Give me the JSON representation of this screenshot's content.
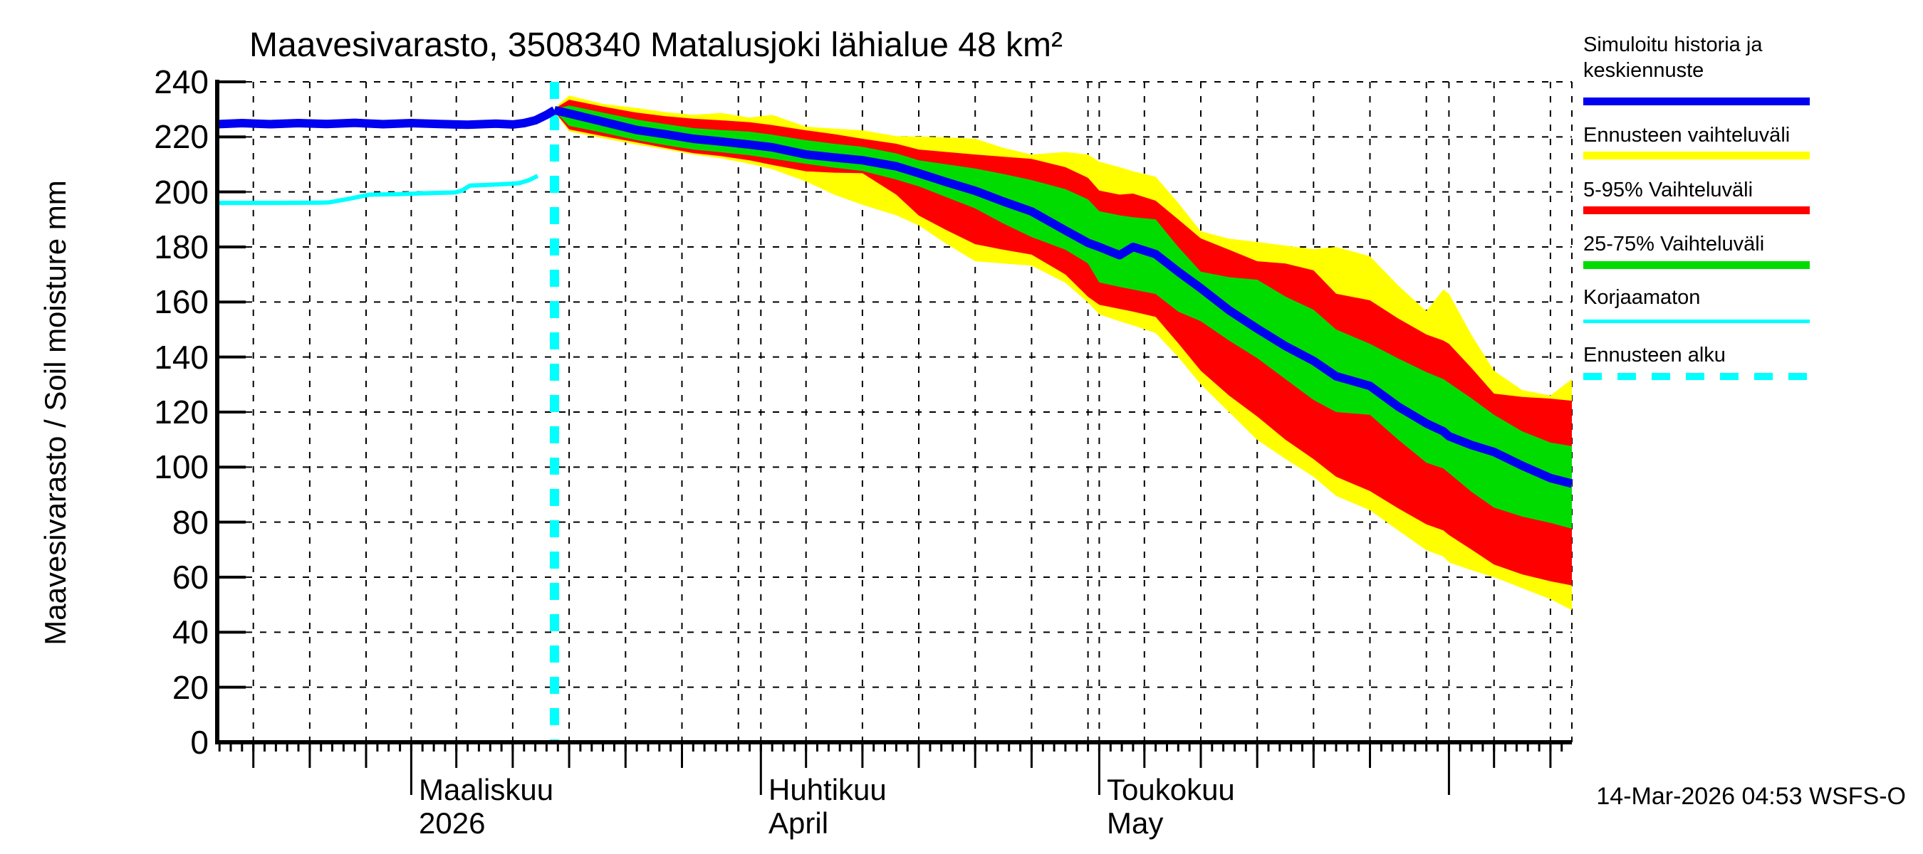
{
  "chart_data": {
    "type": "area",
    "title": "Maavesivarasto, 3508340 Matalusjoki lähialue 48 km²",
    "ylabel": "Maavesivarasto / Soil moisture  mm",
    "timestamp": "14-Mar-2026 04:53 WSFS-O",
    "ylim": [
      0,
      240
    ],
    "y_ticks": [
      0,
      20,
      40,
      60,
      80,
      100,
      120,
      140,
      160,
      180,
      200,
      220,
      240
    ],
    "x_axis": {
      "domain_days_from_mar1": [
        -17.2,
        102.9
      ],
      "months": [
        {
          "day": 0,
          "label": "Maaliskuu",
          "sublabel": "2026"
        },
        {
          "day": 31,
          "label": "Huhtikuu",
          "sublabel": "April"
        },
        {
          "day": 61,
          "label": "Toukokuu",
          "sublabel": "May"
        },
        {
          "day": 92,
          "label": "",
          "sublabel": ""
        }
      ],
      "month_tick_days": [
        0,
        31,
        61,
        92
      ],
      "medium_tick_days": [
        -14,
        -9,
        -4,
        4,
        9,
        14,
        19,
        24,
        35,
        40,
        45,
        50,
        55,
        65,
        70,
        75,
        80,
        85,
        96,
        101
      ],
      "gridline_days": [
        -14,
        -9,
        -4,
        0,
        4,
        9,
        14,
        19,
        24,
        29,
        31,
        35,
        40,
        45,
        50,
        55,
        60,
        61,
        65,
        70,
        75,
        80,
        85,
        90,
        92,
        96,
        101,
        102.9
      ]
    },
    "forecast_start_day": 12.7,
    "colors": {
      "median": "#0000F0",
      "range": "#FFFF00",
      "p5_95": "#FF0000",
      "p25_75": "#00DC00",
      "uncorrected": "#00FFFF",
      "forecast_start": "#00FFFF"
    },
    "history": {
      "t": [
        -17.2,
        -15,
        -12.5,
        -10,
        -7.5,
        -5,
        -2.5,
        0,
        2.5,
        5,
        7.5,
        9,
        10,
        11,
        12,
        12.7
      ],
      "v": [
        224.6,
        225,
        224.6,
        225,
        224.7,
        225.1,
        224.6,
        225,
        224.7,
        224.4,
        224.8,
        224.5,
        225,
        226,
        228,
        229.7
      ]
    },
    "uncorrected": {
      "t": [
        -17.2,
        -12,
        -8,
        -7.3,
        -5.5,
        -3.7,
        -1,
        1,
        3.9,
        4.5,
        5.2,
        7,
        9,
        9.6,
        10.4,
        11.2
      ],
      "v": [
        196,
        196,
        196.1,
        196.2,
        197.5,
        199,
        199.2,
        199.5,
        199.8,
        200.5,
        202.3,
        202.6,
        203,
        203.2,
        204.2,
        205.8
      ]
    },
    "forecast": {
      "t": [
        12.7,
        14,
        17,
        20,
        22.5,
        25,
        27.5,
        30,
        32,
        35,
        37.5,
        40,
        43,
        45,
        47.5,
        50,
        52.5,
        55,
        58,
        60,
        61,
        62.8,
        64,
        66,
        68,
        70,
        72.5,
        75,
        77.5,
        80,
        82,
        85,
        87.5,
        90,
        91.5,
        92,
        94,
        96,
        98.5,
        101,
        102.9
      ],
      "yellow_top": [
        230.5,
        235,
        232,
        230.5,
        229,
        228,
        228.7,
        227,
        228,
        223.7,
        223,
        222.4,
        220.3,
        220.1,
        219.8,
        219.3,
        216,
        213.6,
        214.5,
        213.6,
        211,
        209,
        207.5,
        205.5,
        196,
        185.7,
        183,
        181.8,
        180.5,
        179.2,
        180,
        176.6,
        166,
        156.7,
        164.5,
        163,
        148,
        135,
        128,
        126,
        132
      ],
      "red_top": [
        230.2,
        233.5,
        231,
        228.8,
        227.5,
        226.6,
        226,
        225.3,
        224.3,
        222.4,
        221,
        219.3,
        217.5,
        215.4,
        214.5,
        213.6,
        212.8,
        212,
        209,
        205.1,
        200.5,
        199,
        199.4,
        196.8,
        190,
        183.1,
        179,
        174.8,
        174,
        171.5,
        163,
        160.6,
        154,
        148.2,
        146,
        144.8,
        136,
        126.7,
        125.5,
        124.9,
        124.1
      ],
      "green_top": [
        230,
        231.4,
        228.8,
        226.3,
        224.7,
        223.2,
        222.5,
        221.9,
        220.8,
        218.8,
        217.5,
        216.4,
        214,
        211.5,
        210,
        208.5,
        206.5,
        204.3,
        201,
        197.3,
        193,
        191.5,
        190.8,
        190,
        180,
        171,
        169,
        168.1,
        162,
        157.2,
        150,
        144.8,
        139.5,
        134.5,
        132,
        130.6,
        125,
        119,
        113,
        108.9,
        107.6
      ],
      "median": [
        229.7,
        228.5,
        225.5,
        222.5,
        221,
        219.3,
        218.3,
        217.2,
        216.2,
        213.6,
        212.5,
        211.5,
        209.3,
        206.8,
        203.5,
        200.4,
        196.5,
        192.9,
        186,
        181.5,
        180,
        177,
        180,
        177.4,
        171,
        165,
        157,
        150.3,
        144,
        138.6,
        133,
        129.5,
        122,
        115.9,
        113,
        111.2,
        108,
        105.5,
        100.5,
        96,
        94
      ],
      "green_bottom": [
        229.4,
        224,
        221.5,
        218.8,
        217,
        215.4,
        214.4,
        213.3,
        212.1,
        210.2,
        208.8,
        207.6,
        204.5,
        202,
        198,
        194,
        188.5,
        183.6,
        179,
        174,
        167.1,
        165.5,
        164.5,
        162.9,
        156.5,
        153,
        146,
        139.6,
        132,
        124.4,
        120,
        119,
        110,
        101.6,
        99.5,
        97.8,
        91,
        85.3,
        82,
        79.7,
        77.6
      ],
      "red_bottom": [
        229.2,
        222.7,
        220.3,
        218,
        216,
        214.1,
        213,
        211.5,
        209.8,
        207.5,
        207,
        206.8,
        199,
        191.4,
        186,
        181,
        179,
        177.2,
        170,
        161.9,
        159,
        157.5,
        156.5,
        154.6,
        145,
        135,
        126,
        118.4,
        110,
        102.9,
        96.5,
        91.3,
        85,
        79.2,
        77,
        75.3,
        70,
        64.6,
        61,
        58.5,
        57
      ],
      "yellow_bottom": [
        229,
        222,
        219.5,
        217.2,
        215.5,
        213.6,
        212.2,
        210.2,
        208.3,
        203.8,
        199,
        195.3,
        191.5,
        187.8,
        181,
        174.8,
        174,
        173.2,
        167,
        159.8,
        155.5,
        153,
        151.5,
        148.7,
        140,
        130,
        120,
        109.9,
        103,
        96.5,
        89.5,
        84.3,
        77,
        69.8,
        67.5,
        65.4,
        62.5,
        60,
        56,
        52,
        48
      ]
    },
    "legend": [
      {
        "label": "Simuloitu historia ja keskiennuste",
        "color": "#0000F0",
        "style": "thick"
      },
      {
        "label": "Ennusteen vaihteluväli",
        "color": "#FFFF00",
        "style": "thick"
      },
      {
        "label": "5-95% Vaihteluväli",
        "color": "#FF0000",
        "style": "thick"
      },
      {
        "label": "25-75% Vaihteluväli",
        "color": "#00DC00",
        "style": "thick"
      },
      {
        "label": "Korjaamaton",
        "color": "#00FFFF",
        "style": "thin"
      },
      {
        "label": "Ennusteen alku",
        "color": "#00FFFF",
        "style": "dashed"
      }
    ]
  }
}
